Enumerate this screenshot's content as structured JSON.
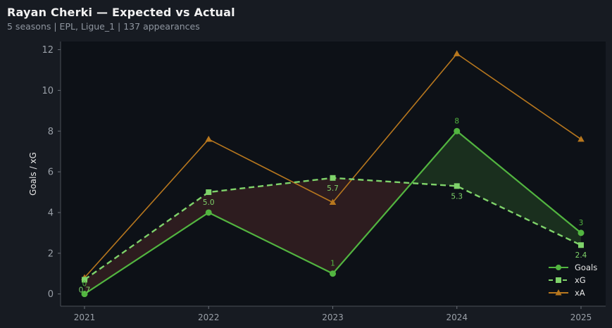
{
  "header": {
    "title": "Rayan Cherki — Expected vs Actual",
    "subtitle": "5 seasons | EPL, Ligue_1 | 137 appearances"
  },
  "colors": {
    "background": "#171b22",
    "plot_background": "#0d1117",
    "goals": "#52b540",
    "xg": "#7fd36a",
    "xa": "#b7771e",
    "overperform_fill": "#1a2f1e",
    "underperform_fill": "#2d1c1f"
  },
  "chart_data": {
    "type": "line",
    "x": [
      2021,
      2022,
      2023,
      2024,
      2025
    ],
    "ylabel": "Goals / xG",
    "ylim": [
      -0.6,
      12.4
    ],
    "yticks": [
      0,
      2,
      4,
      6,
      8,
      10,
      12
    ],
    "grid": false,
    "legend_position": "bottom-right",
    "series": [
      {
        "name": "Goals",
        "values": [
          0,
          4,
          1,
          8,
          3
        ],
        "labels": [
          "0",
          "",
          "1",
          "8",
          "3"
        ],
        "marker": "circle",
        "style": "solid"
      },
      {
        "name": "xG",
        "values": [
          0.7,
          5.0,
          5.7,
          5.3,
          2.4
        ],
        "labels": [
          "0.7",
          "5.0",
          "5.7",
          "5.3",
          "2.4"
        ],
        "marker": "square",
        "style": "dashed"
      },
      {
        "name": "xA",
        "values": [
          0.8,
          7.6,
          4.5,
          11.8,
          7.6
        ],
        "marker": "triangle",
        "style": "solid"
      }
    ]
  }
}
